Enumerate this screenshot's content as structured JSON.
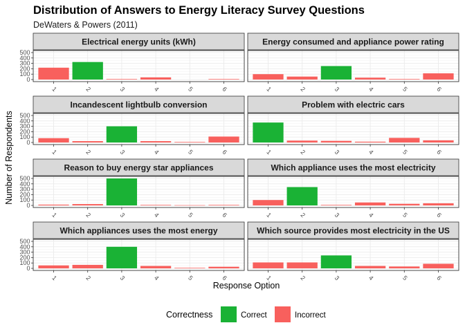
{
  "chart_data": {
    "type": "bar",
    "title": "Distribution of Answers to Energy Literacy Survey Questions",
    "subtitle": "DeWaters & Powers (2011)",
    "xlabel": "Response Option",
    "ylabel": "Number of Respondents",
    "ylim": [
      0,
      500
    ],
    "yticks": [
      0,
      100,
      200,
      300,
      400,
      500
    ],
    "grid": true,
    "legend": {
      "title": "Correctness",
      "position": "bottom",
      "entries": [
        {
          "label": "Correct",
          "color": "#1ab235"
        },
        {
          "label": "Incorrect",
          "color": "#f8605d"
        }
      ]
    },
    "categories": [
      "1",
      "2",
      "3",
      "4",
      "5",
      "6"
    ],
    "colors": {
      "correct": "#1ab235",
      "incorrect": "#f8605d",
      "strip": "#d9d9d9",
      "grid": "#ebebeb"
    },
    "panels": [
      {
        "title": "Electrical energy units (kWh)",
        "categories": [
          "1",
          "2",
          "3",
          "4",
          "6"
        ],
        "values": [
          220,
          325,
          10,
          40,
          10
        ],
        "correct": [
          "2"
        ]
      },
      {
        "title": "Energy consumed and appliance power rating",
        "categories": [
          "1",
          "2",
          "3",
          "4",
          "5",
          "6"
        ],
        "values": [
          100,
          55,
          250,
          35,
          10,
          115
        ],
        "correct": [
          "3"
        ]
      },
      {
        "title": "Incandescent lightbulb conversion",
        "categories": [
          "1",
          "2",
          "3",
          "4",
          "5",
          "6"
        ],
        "values": [
          80,
          25,
          300,
          25,
          10,
          110
        ],
        "correct": [
          "3"
        ]
      },
      {
        "title": "Problem with electric cars",
        "categories": [
          "1",
          "2",
          "3",
          "4",
          "5",
          "6"
        ],
        "values": [
          370,
          35,
          30,
          15,
          85,
          40
        ],
        "correct": [
          "1"
        ]
      },
      {
        "title": "Reason to buy energy star appliances",
        "categories": [
          "1",
          "2",
          "3",
          "4",
          "5",
          "6"
        ],
        "values": [
          15,
          25,
          500,
          10,
          5,
          10
        ],
        "correct": [
          "3"
        ]
      },
      {
        "title": "Which appliance uses the most electricity",
        "categories": [
          "1",
          "2",
          "3",
          "4",
          "5",
          "6"
        ],
        "values": [
          100,
          340,
          10,
          55,
          30,
          40
        ],
        "correct": [
          "2"
        ]
      },
      {
        "title": "Which appliances uses the most energy",
        "categories": [
          "1",
          "2",
          "3",
          "4",
          "5",
          "6"
        ],
        "values": [
          55,
          65,
          400,
          45,
          10,
          30
        ],
        "correct": [
          "3"
        ]
      },
      {
        "title": "Which source provides most electricity in the US",
        "categories": [
          "1",
          "2",
          "3",
          "4",
          "5",
          "6"
        ],
        "values": [
          110,
          110,
          240,
          45,
          35,
          85
        ],
        "correct": [
          "3"
        ]
      }
    ]
  }
}
